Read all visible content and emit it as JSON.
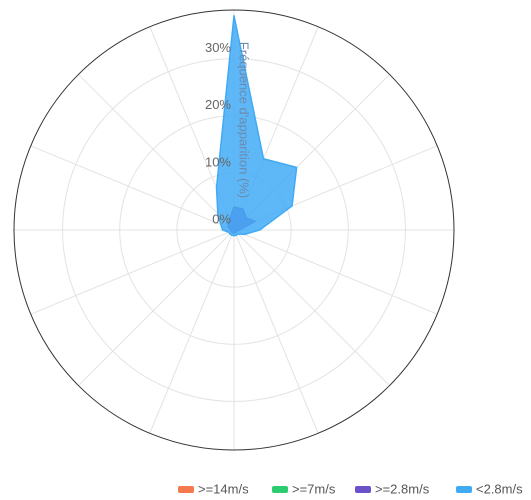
{
  "chart_data": {
    "type": "radar",
    "axis_title": "Fréquence d'apparition (%)",
    "rlim": [
      0,
      38.5
    ],
    "rticks": [
      {
        "value": 0,
        "label": "0%"
      },
      {
        "value": 10,
        "label": "10%"
      },
      {
        "value": 20,
        "label": "20%"
      },
      {
        "value": 30,
        "label": "30%"
      }
    ],
    "grid": true,
    "legend": "bottom-right",
    "series": [
      {
        "name": ">=14m/s",
        "color": "#f4794f",
        "values": [
          0,
          0,
          0,
          0,
          0,
          0,
          0,
          0,
          0,
          0,
          0,
          0,
          0,
          0,
          0,
          0
        ]
      },
      {
        "name": ">=7m/s",
        "color": "#2ecc71",
        "values": [
          0,
          0,
          0,
          0,
          0,
          0,
          0,
          0,
          0,
          0,
          0,
          0,
          0,
          0,
          0,
          0
        ]
      },
      {
        "name": ">=2.8m/s",
        "color": "#6b52c8",
        "values": [
          4,
          4,
          3,
          4,
          1,
          0.5,
          0.5,
          0.5,
          0.5,
          0.5,
          0.5,
          0.5,
          0.5,
          1,
          1.5,
          2
        ]
      },
      {
        "name": "<2.8m/s",
        "color": "#42aaf4",
        "values": [
          37.5,
          13.5,
          15.5,
          11,
          4.5,
          2,
          1,
          1,
          1,
          1,
          1,
          1,
          2,
          2.5,
          4,
          8
        ]
      }
    ]
  }
}
